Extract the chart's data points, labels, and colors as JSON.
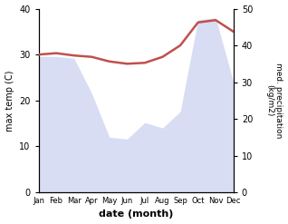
{
  "months": [
    "Jan",
    "Feb",
    "Mar",
    "Apr",
    "May",
    "Jun",
    "Jul",
    "Aug",
    "Sep",
    "Oct",
    "Nov",
    "Dec"
  ],
  "month_indices": [
    1,
    2,
    3,
    4,
    5,
    6,
    7,
    8,
    9,
    10,
    11,
    12
  ],
  "temp_max": [
    30.0,
    30.3,
    29.8,
    29.5,
    28.5,
    28.0,
    28.2,
    29.5,
    32.0,
    37.0,
    37.5,
    35.0
  ],
  "precipitation": [
    37.0,
    37.0,
    36.5,
    27.0,
    15.0,
    14.5,
    19.0,
    17.5,
    22.0,
    47.0,
    47.5,
    30.0
  ],
  "temp_color": "#c0504d",
  "precip_fill_color": "#aab4e8",
  "ylabel_left": "max temp (C)",
  "ylabel_right": "med. precipitation\n(kg/m2)",
  "xlabel": "date (month)",
  "ylim_left": [
    0,
    40
  ],
  "ylim_right": [
    0,
    50
  ],
  "bg_color": "#ffffff"
}
